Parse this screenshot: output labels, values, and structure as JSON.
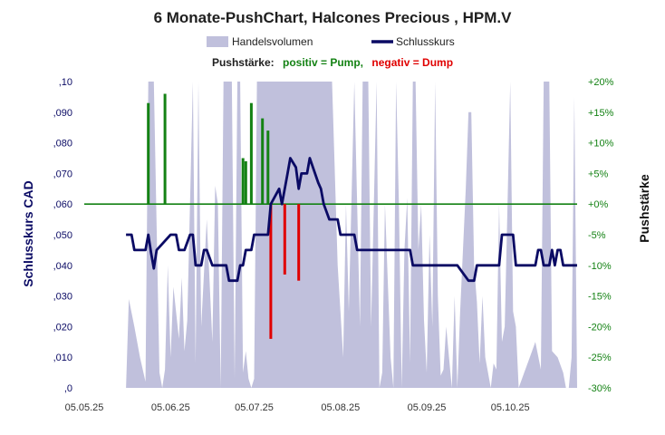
{
  "chart_data": {
    "type": "line",
    "title": "6 Monate-PushChart,  Halcones Precious , HPM.V",
    "legend": {
      "volume_label": "Handelsvolumen",
      "close_label": "Schlusskurs",
      "placement": "top"
    },
    "push_legend": {
      "prefix": "Pushstärke:",
      "positive": "positiv = Pump,",
      "negative": "negativ = Dump"
    },
    "ylabel_left": "Schlusskurs CAD",
    "ylabel_right": "Pushstärke",
    "x_ticks": [
      "05.05.25",
      "05.06.25",
      "05.07.25",
      "05.08.25",
      "05.09.25",
      "05.10.25"
    ],
    "x_range": [
      "2025-05-05",
      "2025-10-29"
    ],
    "y_left_ticks": [
      ",0",
      ",010",
      ",020",
      ",030",
      ",040",
      ",050",
      ",060",
      ",070",
      ",080",
      ",090",
      ",10"
    ],
    "y_left_range": [
      0,
      0.1
    ],
    "y_right_ticks": [
      "-30%",
      "-25%",
      "-20%",
      "-15%",
      "-10%",
      "-5%",
      "+0%",
      "+5%",
      "+10%",
      "+15%",
      "+20%"
    ],
    "y_right_range": [
      -30,
      20
    ],
    "colors": {
      "volume": "#c0c0dc",
      "close": "#0a0a64",
      "pump": "#148214",
      "dump": "#e00000",
      "left_axis": "#0a0a64",
      "right_axis": "#148214",
      "zero_line": "#148214"
    },
    "series": [
      {
        "name": "Schlusskurs",
        "points": [
          [
            "2025-05-20",
            0.05
          ],
          [
            "2025-05-22",
            0.05
          ],
          [
            "2025-05-23",
            0.045
          ],
          [
            "2025-05-27",
            0.045
          ],
          [
            "2025-05-28",
            0.05
          ],
          [
            "2025-05-29",
            0.044
          ],
          [
            "2025-05-30",
            0.039
          ],
          [
            "2025-05-31",
            0.045
          ],
          [
            "2025-06-03",
            0.048
          ],
          [
            "2025-06-05",
            0.05
          ],
          [
            "2025-06-07",
            0.05
          ],
          [
            "2025-06-08",
            0.045
          ],
          [
            "2025-06-10",
            0.045
          ],
          [
            "2025-06-12",
            0.05
          ],
          [
            "2025-06-13",
            0.05
          ],
          [
            "2025-06-14",
            0.04
          ],
          [
            "2025-06-16",
            0.04
          ],
          [
            "2025-06-17",
            0.045
          ],
          [
            "2025-06-18",
            0.045
          ],
          [
            "2025-06-20",
            0.04
          ],
          [
            "2025-06-23",
            0.04
          ],
          [
            "2025-06-25",
            0.04
          ],
          [
            "2025-06-26",
            0.035
          ],
          [
            "2025-06-29",
            0.035
          ],
          [
            "2025-06-30",
            0.04
          ],
          [
            "2025-07-01",
            0.04
          ],
          [
            "2025-07-02",
            0.045
          ],
          [
            "2025-07-04",
            0.045
          ],
          [
            "2025-07-05",
            0.05
          ],
          [
            "2025-07-10",
            0.05
          ],
          [
            "2025-07-11",
            0.06
          ],
          [
            "2025-07-14",
            0.065
          ],
          [
            "2025-07-15",
            0.06
          ],
          [
            "2025-07-17",
            0.07
          ],
          [
            "2025-07-18",
            0.075
          ],
          [
            "2025-07-20",
            0.072
          ],
          [
            "2025-07-21",
            0.065
          ],
          [
            "2025-07-22",
            0.07
          ],
          [
            "2025-07-24",
            0.07
          ],
          [
            "2025-07-25",
            0.075
          ],
          [
            "2025-07-28",
            0.067
          ],
          [
            "2025-07-29",
            0.065
          ],
          [
            "2025-07-30",
            0.06
          ],
          [
            "2025-08-01",
            0.055
          ],
          [
            "2025-08-04",
            0.055
          ],
          [
            "2025-08-05",
            0.05
          ],
          [
            "2025-08-10",
            0.05
          ],
          [
            "2025-08-11",
            0.045
          ],
          [
            "2025-08-30",
            0.045
          ],
          [
            "2025-08-31",
            0.04
          ],
          [
            "2025-09-16",
            0.04
          ],
          [
            "2025-09-20",
            0.035
          ],
          [
            "2025-09-22",
            0.035
          ],
          [
            "2025-09-23",
            0.04
          ],
          [
            "2025-10-01",
            0.04
          ],
          [
            "2025-10-02",
            0.05
          ],
          [
            "2025-10-06",
            0.05
          ],
          [
            "2025-10-07",
            0.04
          ],
          [
            "2025-10-14",
            0.04
          ],
          [
            "2025-10-15",
            0.045
          ],
          [
            "2025-10-16",
            0.045
          ],
          [
            "2025-10-17",
            0.04
          ],
          [
            "2025-10-19",
            0.04
          ],
          [
            "2025-10-20",
            0.045
          ],
          [
            "2025-10-21",
            0.04
          ],
          [
            "2025-10-22",
            0.045
          ],
          [
            "2025-10-23",
            0.045
          ],
          [
            "2025-10-24",
            0.04
          ],
          [
            "2025-10-29",
            0.04
          ]
        ]
      },
      {
        "name": "Handelsvolumen",
        "points": [
          [
            "2025-05-20",
            0.0
          ],
          [
            "2025-05-21",
            0.029
          ],
          [
            "2025-05-23",
            0.02
          ],
          [
            "2025-05-25",
            0.01
          ],
          [
            "2025-05-27",
            0.002
          ],
          [
            "2025-05-28",
            0.1
          ],
          [
            "2025-05-29",
            0.1
          ],
          [
            "2025-05-30",
            0.1
          ],
          [
            "2025-06-01",
            0.005
          ],
          [
            "2025-06-02",
            0.0
          ],
          [
            "2025-06-03",
            0.006
          ],
          [
            "2025-06-04",
            0.04
          ],
          [
            "2025-06-05",
            0.01
          ],
          [
            "2025-06-06",
            0.033
          ],
          [
            "2025-06-08",
            0.016
          ],
          [
            "2025-06-09",
            0.036
          ],
          [
            "2025-06-10",
            0.012
          ],
          [
            "2025-06-11",
            0.022
          ],
          [
            "2025-06-13",
            0.1
          ],
          [
            "2025-06-14",
            0.008
          ],
          [
            "2025-06-15",
            0.1
          ],
          [
            "2025-06-16",
            0.02
          ],
          [
            "2025-06-18",
            0.055
          ],
          [
            "2025-06-20",
            0.015
          ],
          [
            "2025-06-21",
            0.066
          ],
          [
            "2025-06-22",
            0.06
          ],
          [
            "2025-06-23",
            0.0
          ],
          [
            "2025-06-24",
            0.1
          ],
          [
            "2025-06-25",
            0.1
          ],
          [
            "2025-06-26",
            0.1
          ],
          [
            "2025-06-27",
            0.1
          ],
          [
            "2025-06-28",
            0.003
          ],
          [
            "2025-06-29",
            0.1
          ],
          [
            "2025-06-30",
            0.1
          ],
          [
            "2025-07-01",
            0.005
          ],
          [
            "2025-07-02",
            0.012
          ],
          [
            "2025-07-03",
            0.003
          ],
          [
            "2025-07-04",
            0.0
          ],
          [
            "2025-07-05",
            0.003
          ],
          [
            "2025-07-06",
            0.1
          ],
          [
            "2025-07-07",
            0.1
          ],
          [
            "2025-07-08",
            0.1
          ],
          [
            "2025-07-09",
            0.1
          ],
          [
            "2025-07-10",
            0.1
          ],
          [
            "2025-07-11",
            0.1
          ],
          [
            "2025-07-12",
            0.1
          ],
          [
            "2025-07-14",
            0.1
          ],
          [
            "2025-07-15",
            0.1
          ],
          [
            "2025-07-17",
            0.1
          ],
          [
            "2025-07-19",
            0.1
          ],
          [
            "2025-07-21",
            0.1
          ],
          [
            "2025-07-23",
            0.1
          ],
          [
            "2025-07-25",
            0.1
          ],
          [
            "2025-07-27",
            0.1
          ],
          [
            "2025-07-29",
            0.1
          ],
          [
            "2025-07-31",
            0.1
          ],
          [
            "2025-08-02",
            0.1
          ],
          [
            "2025-08-04",
            0.04
          ],
          [
            "2025-08-06",
            0.01
          ],
          [
            "2025-08-07",
            0.06
          ],
          [
            "2025-08-08",
            0.025
          ],
          [
            "2025-08-10",
            0.1
          ],
          [
            "2025-08-12",
            0.02
          ],
          [
            "2025-08-13",
            0.1
          ],
          [
            "2025-08-15",
            0.1
          ],
          [
            "2025-08-16",
            0.02
          ],
          [
            "2025-08-18",
            0.1
          ],
          [
            "2025-08-19",
            0.0
          ],
          [
            "2025-08-20",
            0.005
          ],
          [
            "2025-08-21",
            0.06
          ],
          [
            "2025-08-22",
            0.035
          ],
          [
            "2025-08-23",
            0.01
          ],
          [
            "2025-08-24",
            0.0
          ],
          [
            "2025-08-25",
            0.1
          ],
          [
            "2025-08-26",
            0.06
          ],
          [
            "2025-08-27",
            0.0
          ],
          [
            "2025-08-28",
            0.045
          ],
          [
            "2025-08-29",
            0.062
          ],
          [
            "2025-08-30",
            0.008
          ],
          [
            "2025-08-31",
            0.1
          ],
          [
            "2025-09-01",
            0.1
          ],
          [
            "2025-09-02",
            0.045
          ],
          [
            "2025-09-03",
            0.06
          ],
          [
            "2025-09-04",
            0.022
          ],
          [
            "2025-09-05",
            0.005
          ],
          [
            "2025-09-06",
            0.05
          ],
          [
            "2025-09-07",
            0.02
          ],
          [
            "2025-09-08",
            0.1
          ],
          [
            "2025-09-09",
            0.03
          ],
          [
            "2025-09-10",
            0.004
          ],
          [
            "2025-09-11",
            0.006
          ],
          [
            "2025-09-12",
            0.02
          ],
          [
            "2025-09-13",
            0.01
          ],
          [
            "2025-09-14",
            0.0
          ],
          [
            "2025-09-15",
            0.03
          ],
          [
            "2025-09-16",
            0.0
          ],
          [
            "2025-09-17",
            0.025
          ],
          [
            "2025-09-18",
            0.045
          ],
          [
            "2025-09-19",
            0.065
          ],
          [
            "2025-09-20",
            0.09
          ],
          [
            "2025-09-21",
            0.09
          ],
          [
            "2025-09-22",
            0.04
          ],
          [
            "2025-09-23",
            0.028
          ],
          [
            "2025-09-24",
            0.008
          ],
          [
            "2025-09-25",
            0.03
          ],
          [
            "2025-09-26",
            0.01
          ],
          [
            "2025-09-28",
            0.0
          ],
          [
            "2025-09-29",
            0.008
          ],
          [
            "2025-09-30",
            0.006
          ],
          [
            "2025-10-01",
            0.06
          ],
          [
            "2025-10-02",
            0.015
          ],
          [
            "2025-10-03",
            0.02
          ],
          [
            "2025-10-04",
            0.06
          ],
          [
            "2025-10-05",
            0.1
          ],
          [
            "2025-10-06",
            0.025
          ],
          [
            "2025-10-07",
            0.02
          ],
          [
            "2025-10-08",
            0.0
          ],
          [
            "2025-10-10",
            0.005
          ],
          [
            "2025-10-12",
            0.01
          ],
          [
            "2025-10-14",
            0.015
          ],
          [
            "2025-10-16",
            0.006
          ],
          [
            "2025-10-17",
            0.1
          ],
          [
            "2025-10-18",
            0.1
          ],
          [
            "2025-10-19",
            0.1
          ],
          [
            "2025-10-20",
            0.012
          ],
          [
            "2025-10-22",
            0.01
          ],
          [
            "2025-10-24",
            0.005
          ],
          [
            "2025-10-25",
            0.0
          ],
          [
            "2025-10-26",
            0.0
          ],
          [
            "2025-10-27",
            0.01
          ],
          [
            "2025-10-28",
            0.095
          ],
          [
            "2025-10-29",
            0.0
          ]
        ]
      },
      {
        "name": "Pushstärke",
        "points": [
          [
            "2025-05-28",
            16.5
          ],
          [
            "2025-06-03",
            18.0
          ],
          [
            "2025-07-01",
            7.5
          ],
          [
            "2025-07-02",
            7.0
          ],
          [
            "2025-07-04",
            16.5
          ],
          [
            "2025-07-08",
            14.0
          ],
          [
            "2025-07-10",
            12.0
          ],
          [
            "2025-07-11",
            -22.0
          ],
          [
            "2025-07-16",
            -11.5
          ],
          [
            "2025-07-21",
            -12.5
          ]
        ]
      }
    ]
  }
}
